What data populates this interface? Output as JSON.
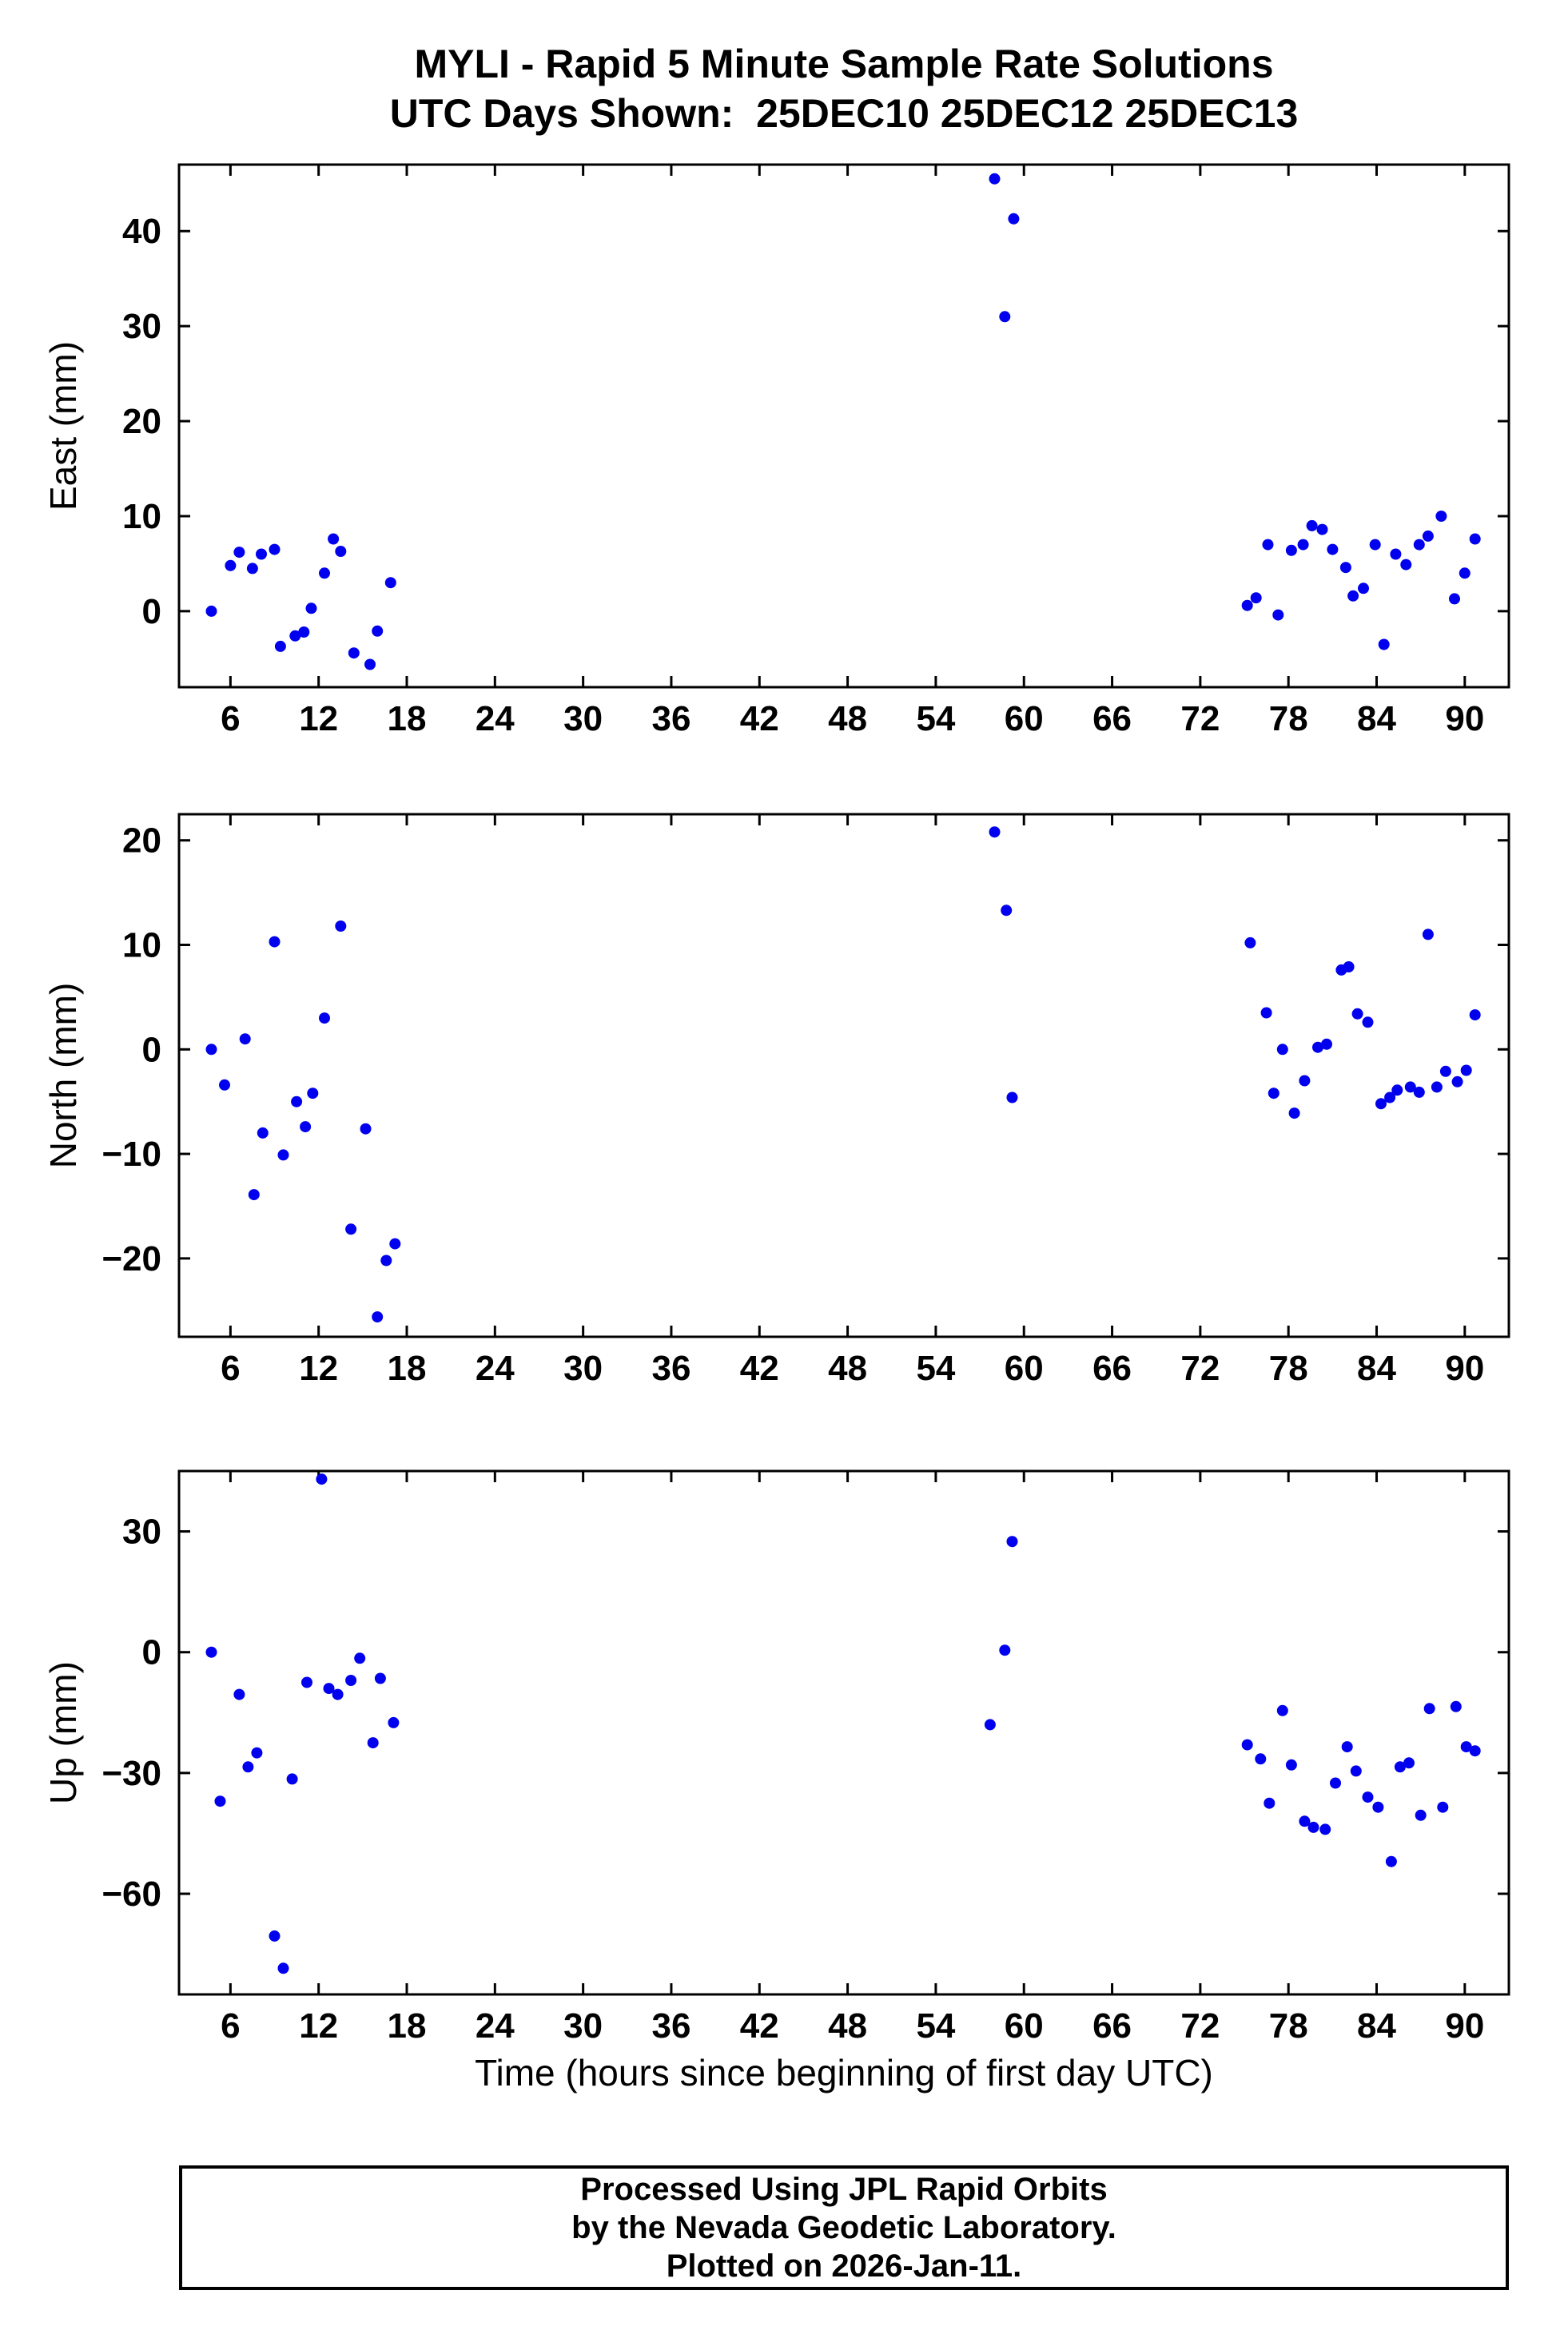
{
  "title": {
    "line1": "MYLI - Rapid 5 Minute Sample Rate Solutions",
    "line2": "UTC Days Shown:  25DEC10 25DEC12 25DEC13"
  },
  "x_axis_label": "Time (hours since beginning of first day UTC)",
  "footer": {
    "line1": "Processed Using JPL Rapid Orbits",
    "line2": "by the Nevada Geodetic Laboratory.",
    "line3": "Plotted on 2026-Jan-11."
  },
  "point_color": "#0000ee",
  "frame_color": "#000000",
  "chart_data": [
    {
      "id": "east",
      "type": "scatter",
      "ylabel": "East (mm)",
      "ylim": [
        -8,
        47
      ],
      "yticks": [
        0,
        10,
        20,
        30,
        40
      ],
      "xlim": [
        2.5,
        93
      ],
      "xticks": [
        6,
        12,
        18,
        24,
        30,
        36,
        42,
        48,
        54,
        60,
        66,
        72,
        78,
        84,
        90
      ],
      "points": [
        [
          4.7,
          0.0
        ],
        [
          6.0,
          4.8
        ],
        [
          6.6,
          6.2
        ],
        [
          7.5,
          4.5
        ],
        [
          8.1,
          6.0
        ],
        [
          9.0,
          6.5
        ],
        [
          9.4,
          -3.7
        ],
        [
          10.4,
          -2.6
        ],
        [
          11.0,
          -2.2
        ],
        [
          11.5,
          0.3
        ],
        [
          12.4,
          4.0
        ],
        [
          13.0,
          7.6
        ],
        [
          13.5,
          6.3
        ],
        [
          14.4,
          -4.4
        ],
        [
          15.5,
          -5.6
        ],
        [
          16.0,
          -2.1
        ],
        [
          16.9,
          3.0
        ],
        [
          58.0,
          45.5
        ],
        [
          58.7,
          31.0
        ],
        [
          59.3,
          41.3
        ],
        [
          75.2,
          0.6
        ],
        [
          75.8,
          1.4
        ],
        [
          76.6,
          7.0
        ],
        [
          77.3,
          -0.4
        ],
        [
          78.2,
          6.4
        ],
        [
          79.0,
          7.0
        ],
        [
          79.6,
          9.0
        ],
        [
          80.3,
          8.6
        ],
        [
          81.0,
          6.5
        ],
        [
          81.9,
          4.6
        ],
        [
          82.4,
          1.6
        ],
        [
          83.1,
          2.4
        ],
        [
          83.9,
          7.0
        ],
        [
          84.5,
          -3.5
        ],
        [
          85.3,
          6.0
        ],
        [
          86.0,
          4.9
        ],
        [
          86.9,
          7.0
        ],
        [
          87.5,
          7.9
        ],
        [
          88.4,
          10.0
        ],
        [
          89.3,
          1.3
        ],
        [
          90.0,
          4.0
        ],
        [
          90.7,
          7.6
        ]
      ]
    },
    {
      "id": "north",
      "type": "scatter",
      "ylabel": "North (mm)",
      "ylim": [
        -27.5,
        22.5
      ],
      "yticks": [
        -20,
        -10,
        0,
        10,
        20
      ],
      "xlim": [
        2.5,
        93
      ],
      "xticks": [
        6,
        12,
        18,
        24,
        30,
        36,
        42,
        48,
        54,
        60,
        66,
        72,
        78,
        84,
        90
      ],
      "points": [
        [
          4.7,
          0.0
        ],
        [
          5.6,
          -3.4
        ],
        [
          7.0,
          1.0
        ],
        [
          7.6,
          -13.9
        ],
        [
          8.2,
          -8.0
        ],
        [
          9.0,
          10.3
        ],
        [
          9.6,
          -10.1
        ],
        [
          10.5,
          -5.0
        ],
        [
          11.1,
          -7.4
        ],
        [
          11.6,
          -4.2
        ],
        [
          12.4,
          3.0
        ],
        [
          13.5,
          11.8
        ],
        [
          14.2,
          -17.2
        ],
        [
          15.2,
          -7.6
        ],
        [
          16.0,
          -25.6
        ],
        [
          16.6,
          -20.2
        ],
        [
          17.2,
          -18.6
        ],
        [
          58.0,
          20.8
        ],
        [
          58.8,
          13.3
        ],
        [
          59.2,
          -4.6
        ],
        [
          75.4,
          10.2
        ],
        [
          76.5,
          3.5
        ],
        [
          77.0,
          -4.2
        ],
        [
          77.6,
          0.0
        ],
        [
          78.4,
          -6.1
        ],
        [
          79.1,
          -3.0
        ],
        [
          80.0,
          0.2
        ],
        [
          80.6,
          0.5
        ],
        [
          81.6,
          7.6
        ],
        [
          82.1,
          7.9
        ],
        [
          82.7,
          3.4
        ],
        [
          83.4,
          2.6
        ],
        [
          84.3,
          -5.2
        ],
        [
          84.9,
          -4.6
        ],
        [
          85.4,
          -3.9
        ],
        [
          86.3,
          -3.6
        ],
        [
          86.9,
          -4.1
        ],
        [
          87.5,
          11.0
        ],
        [
          88.1,
          -3.6
        ],
        [
          88.7,
          -2.1
        ],
        [
          89.5,
          -3.1
        ],
        [
          90.1,
          -2.0
        ],
        [
          90.7,
          3.3
        ]
      ]
    },
    {
      "id": "up",
      "type": "scatter",
      "ylabel": "Up (mm)",
      "ylim": [
        -85,
        45
      ],
      "yticks": [
        -60,
        -30,
        0,
        30
      ],
      "xlim": [
        2.5,
        93
      ],
      "xticks": [
        6,
        12,
        18,
        24,
        30,
        36,
        42,
        48,
        54,
        60,
        66,
        72,
        78,
        84,
        90
      ],
      "points": [
        [
          4.7,
          0.0
        ],
        [
          5.3,
          -37.0
        ],
        [
          6.6,
          -10.5
        ],
        [
          7.2,
          -28.5
        ],
        [
          7.8,
          -25.0
        ],
        [
          9.0,
          -70.5
        ],
        [
          9.6,
          -78.5
        ],
        [
          10.2,
          -31.5
        ],
        [
          11.2,
          -7.5
        ],
        [
          12.2,
          43.0
        ],
        [
          12.7,
          -9.0
        ],
        [
          13.3,
          -10.5
        ],
        [
          14.2,
          -7.0
        ],
        [
          14.8,
          -1.5
        ],
        [
          15.7,
          -22.5
        ],
        [
          16.2,
          -6.5
        ],
        [
          17.1,
          -17.5
        ],
        [
          57.7,
          -18.0
        ],
        [
          58.7,
          0.5
        ],
        [
          59.2,
          27.5
        ],
        [
          75.2,
          -23.0
        ],
        [
          76.1,
          -26.5
        ],
        [
          76.7,
          -37.5
        ],
        [
          77.6,
          -14.5
        ],
        [
          78.2,
          -28.0
        ],
        [
          79.1,
          -42.0
        ],
        [
          79.7,
          -43.5
        ],
        [
          80.5,
          -44.0
        ],
        [
          81.2,
          -32.5
        ],
        [
          82.0,
          -23.5
        ],
        [
          82.6,
          -29.5
        ],
        [
          83.4,
          -36.0
        ],
        [
          84.1,
          -38.5
        ],
        [
          85.0,
          -52.0
        ],
        [
          85.6,
          -28.5
        ],
        [
          86.2,
          -27.5
        ],
        [
          87.0,
          -40.5
        ],
        [
          87.6,
          -14.0
        ],
        [
          88.5,
          -38.5
        ],
        [
          89.4,
          -13.5
        ],
        [
          90.1,
          -23.5
        ],
        [
          90.7,
          -24.5
        ]
      ]
    }
  ]
}
